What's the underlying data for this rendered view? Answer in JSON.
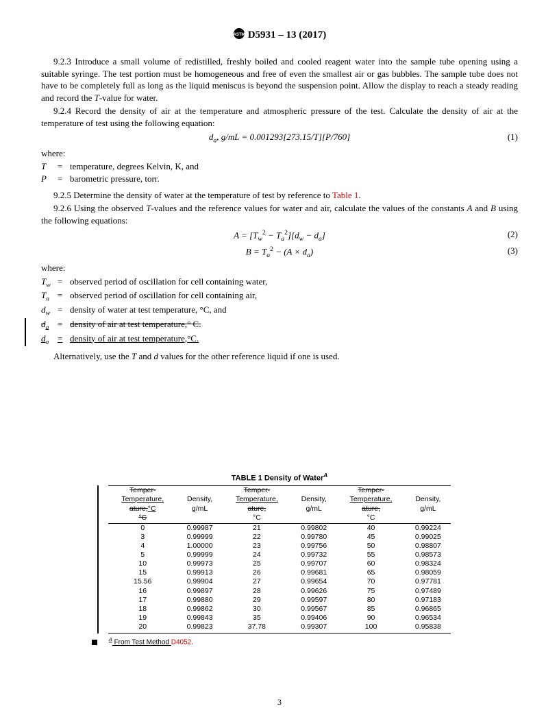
{
  "header": {
    "standard": "D5931 – 13 (2017)"
  },
  "paragraphs": {
    "p923": "9.2.3 Introduce a small volume of redistilled, freshly boiled and cooled reagent water into the sample tube opening using a suitable syringe. The test portion must be homogeneous and free of even the smallest air or gas bubbles. The sample tube does not have to be completely full as long as the liquid meniscus is beyond the suspension point. Allow the display to reach a steady reading and record the ",
    "p923_tval": "T",
    "p923_end": "-value for water.",
    "p924a": "9.2.4 Record the density of air at the temperature and atmospheric pressure of the test. Calculate the density of air at the temperature of test using the following equation:",
    "eq1_lhs": "d",
    "eq1_sub": "a",
    "eq1_rest": ", g/mL = 0.001293[273.15/T][P/760]",
    "eq1_num": "(1)",
    "where1_label": "where:",
    "where1": [
      {
        "sym": "T",
        "def": "temperature, degrees Kelvin, K, and"
      },
      {
        "sym": "P",
        "def": "barometric pressure, torr."
      }
    ],
    "p925a": "9.2.5 Determine the density of water at the temperature of test by reference to ",
    "p925_link": "Table 1",
    "p925b": ".",
    "p926a": "9.2.6 Using the observed ",
    "p926_t": "T",
    "p926b": "-values and the reference values for water and air, calculate the values of the constants ",
    "p926_A": "A",
    "p926c": " and ",
    "p926_B": "B",
    "p926d": " using the following equations:",
    "eq2": "A = [T",
    "eq2_w": "w",
    "eq2_m": " − T",
    "eq2_a": "a",
    "eq2_r": "][d",
    "eq2_dw": "w",
    "eq2_r2": " − d",
    "eq2_da": "a",
    "eq2_end": "]",
    "eq2_num": "(2)",
    "eq3": "B = T",
    "eq3_a": "a",
    "eq3_m": " − (A × d",
    "eq3_da": "a",
    "eq3_end": ")",
    "eq3_num": "(3)",
    "where2_label": "where:",
    "where2": [
      {
        "sym": "T",
        "sub": "w",
        "def": "observed period of oscillation for cell containing water,"
      },
      {
        "sym": "T",
        "sub": "a",
        "def": "observed period of oscillation for cell containing air,"
      },
      {
        "sym": "d",
        "sub": "w",
        "def": "density of water at test temperature, °C, and"
      }
    ],
    "where2_strike": {
      "sym": "d",
      "sub": "a",
      "def": "density of air at test temperature,° C."
    },
    "where2_new": {
      "sym": "d",
      "sub": "a",
      "def": "density of air at test temperature,°C."
    },
    "alt": "Alternatively, use the ",
    "alt_T": "T",
    "alt_mid": " and ",
    "alt_d": "d",
    "alt_end": " values for the other reference liquid if one is used."
  },
  "table": {
    "title": "TABLE 1 Density of Water",
    "title_sup": "A",
    "hdr_temp_strike": "Temper-",
    "hdr_temp": "Temperature,",
    "hdr_temp_strike2": "ature,",
    "hdr_unit_strike": "°C",
    "hdr_unit": "°C",
    "hdr_dens": "Density,",
    "hdr_dens_unit": "g/mL",
    "rows": [
      [
        "0",
        "0.99987",
        "21",
        "0.99802",
        "40",
        "0.99224"
      ],
      [
        "3",
        "0.99999",
        "22",
        "0.99780",
        "45",
        "0.99025"
      ],
      [
        "4",
        "1.00000",
        "23",
        "0.99756",
        "50",
        "0.98807"
      ],
      [
        "5",
        "0.99999",
        "24",
        "0.99732",
        "55",
        "0.98573"
      ],
      [
        "10",
        "0.99973",
        "25",
        "0.99707",
        "60",
        "0.98324"
      ],
      [
        "15",
        "0.99913",
        "26",
        "0.99681",
        "65",
        "0.98059"
      ],
      [
        "15.56",
        "0.99904",
        "27",
        "0.99654",
        "70",
        "0.97781"
      ],
      [
        "16",
        "0.99897",
        "28",
        "0.99626",
        "75",
        "0.97489"
      ],
      [
        "17",
        "0.99880",
        "29",
        "0.99597",
        "80",
        "0.97183"
      ],
      [
        "18",
        "0.99862",
        "30",
        "0.99567",
        "85",
        "0.96865"
      ],
      [
        "19",
        "0.99843",
        "35",
        "0.99406",
        "90",
        "0.96534"
      ],
      [
        "20",
        "0.99823",
        "37.78",
        "0.99307",
        "100",
        "0.95838"
      ]
    ],
    "footnote_sup": "A",
    "footnote_text": " From Test Method ",
    "footnote_link": "D4052",
    "footnote_end": "."
  },
  "page_number": "3"
}
